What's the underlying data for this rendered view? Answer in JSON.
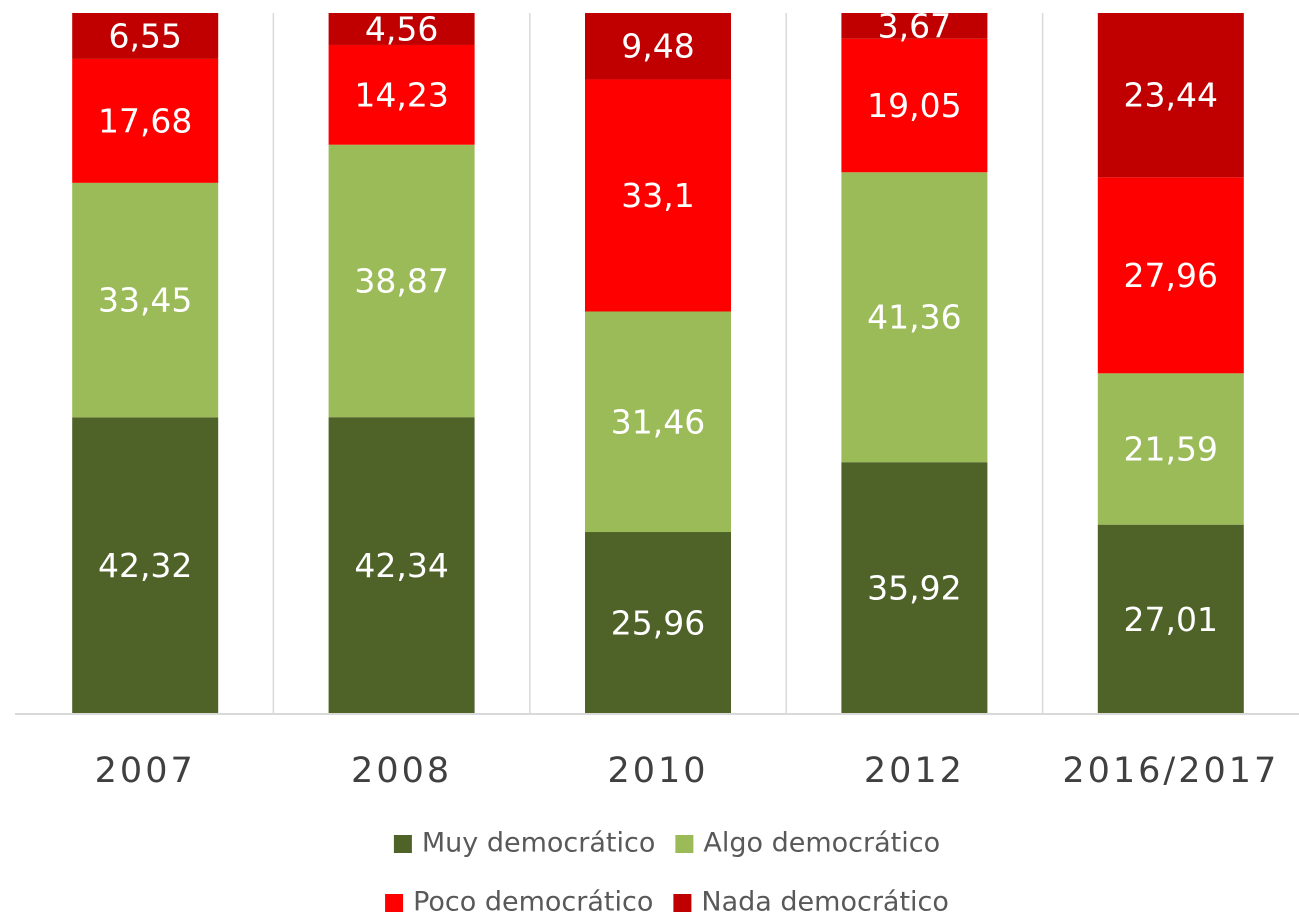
{
  "chart_data": {
    "type": "stacked_bar",
    "categories": [
      "2007",
      "2008",
      "2010",
      "2012",
      "2016/2017"
    ],
    "series": [
      {
        "name": "Muy democrático",
        "color": "#4f6228",
        "values": [
          42.32,
          42.34,
          25.96,
          35.92,
          27.01
        ],
        "value_labels": [
          "42,32",
          "42,34",
          "25,96",
          "35,92",
          "27,01"
        ]
      },
      {
        "name": "Algo democrático",
        "color": "#9bbb59",
        "values": [
          33.45,
          38.87,
          31.46,
          41.36,
          21.59
        ],
        "value_labels": [
          "33,45",
          "38,87",
          "31,46",
          "41,36",
          "21,59"
        ]
      },
      {
        "name": "Poco democrático",
        "color": "#ff0000",
        "values": [
          17.68,
          14.23,
          33.1,
          19.05,
          27.96
        ],
        "value_labels": [
          "17,68",
          "14,23",
          "33,1",
          "19,05",
          "27,96"
        ]
      },
      {
        "name": "Nada democrático",
        "color": "#c00000",
        "values": [
          6.55,
          4.56,
          9.48,
          3.67,
          23.44
        ],
        "value_labels": [
          "6,55",
          "4,56",
          "9,48",
          "3,67",
          "23,44"
        ]
      }
    ],
    "ylim": [
      0,
      100
    ]
  }
}
